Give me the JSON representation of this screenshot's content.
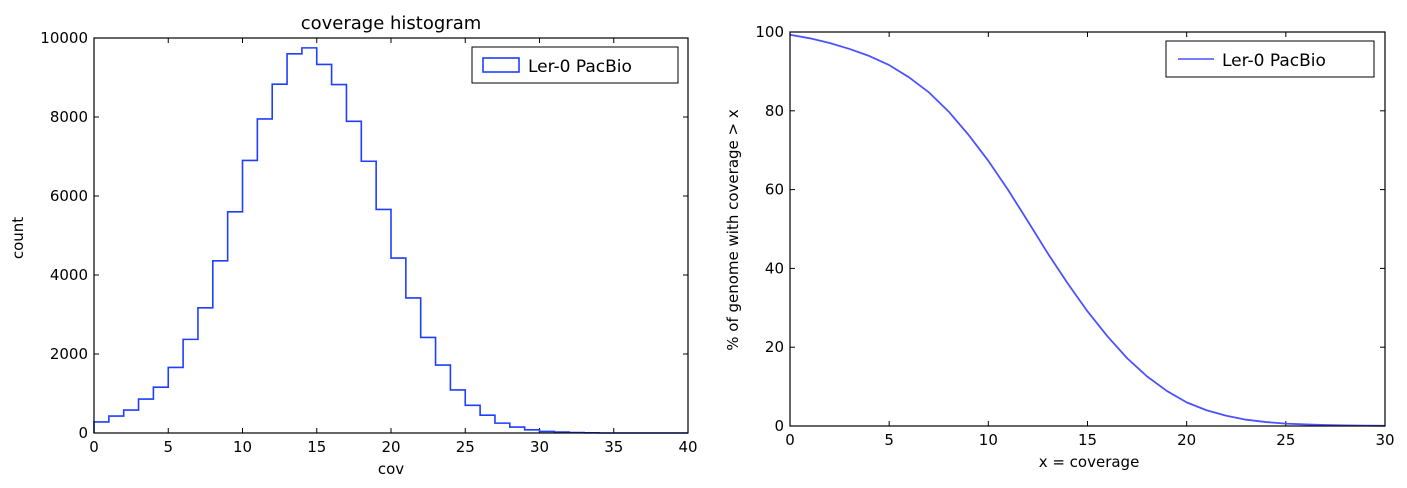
{
  "chart_data": [
    {
      "type": "histogram",
      "title": "coverage histogram",
      "xlabel": "cov",
      "ylabel": "count",
      "xlim": [
        0,
        40
      ],
      "ylim": [
        0,
        10000
      ],
      "xticks": [
        0,
        5,
        10,
        15,
        20,
        25,
        30,
        35,
        40
      ],
      "yticks": [
        0,
        2000,
        4000,
        6000,
        8000,
        10000
      ],
      "legend": {
        "placement": "top-right",
        "label": "Ler-0 PacBio"
      },
      "grid": false,
      "series_color": "#1f3fff",
      "bin_width": 1,
      "bins_start": 0,
      "counts": [
        280,
        430,
        580,
        860,
        1160,
        1660,
        2370,
        3170,
        4360,
        5600,
        6900,
        7950,
        8830,
        9600,
        9750,
        9330,
        8820,
        7890,
        6880,
        5660,
        4430,
        3420,
        2420,
        1720,
        1090,
        700,
        450,
        250,
        150,
        80,
        40,
        25,
        10,
        5,
        0,
        0,
        0,
        0,
        0,
        0
      ]
    },
    {
      "type": "line",
      "title": "",
      "xlabel": "x = coverage",
      "ylabel": "% of genome with coverage > x",
      "xlim": [
        0,
        30
      ],
      "ylim": [
        0,
        100
      ],
      "xticks": [
        0,
        5,
        10,
        15,
        20,
        25,
        30
      ],
      "yticks": [
        0,
        20,
        40,
        60,
        80,
        100
      ],
      "legend": {
        "placement": "top-right",
        "label": "Ler-0 PacBio"
      },
      "grid": false,
      "series_color": "#4b52ff",
      "x": [
        0,
        1,
        2,
        3,
        4,
        5,
        6,
        7,
        8,
        9,
        10,
        11,
        12,
        13,
        14,
        15,
        16,
        17,
        18,
        19,
        20,
        21,
        22,
        23,
        24,
        25,
        26,
        27,
        28,
        29,
        30
      ],
      "y": [
        99.3,
        98.4,
        97.2,
        95.7,
        93.9,
        91.6,
        88.5,
        84.7,
        79.8,
        73.9,
        67.3,
        59.9,
        51.9,
        43.8,
        36.2,
        29.1,
        22.8,
        17.2,
        12.6,
        8.9,
        6.0,
        4.0,
        2.6,
        1.6,
        1.0,
        0.6,
        0.4,
        0.25,
        0.15,
        0.1,
        0.05
      ]
    }
  ]
}
